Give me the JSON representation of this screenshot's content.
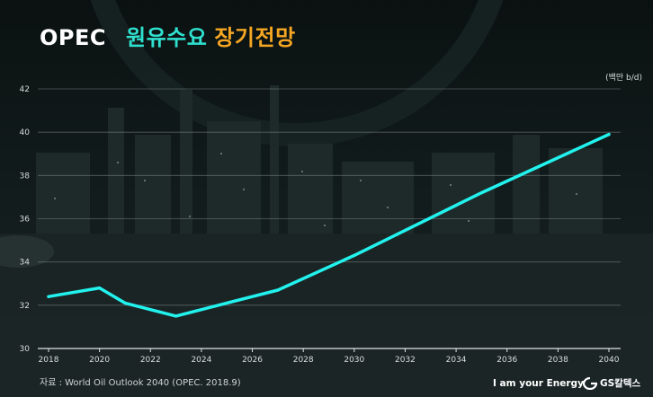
{
  "header": {
    "title_prefix": "OPEC",
    "title_main": "원유수요",
    "title_suffix": "장기전망"
  },
  "footer": {
    "source": "자료 : World Oil Outlook 2040 (OPEC. 2018.9)",
    "slogan": "I am your Energy",
    "brand": "GS칼텍스"
  },
  "colors": {
    "line": "#22f2ee",
    "title_accent": "#2fe0cf",
    "title_orange": "#f5a623"
  },
  "chart_data": {
    "type": "line",
    "title": "OPEC 원유수요 장기전망",
    "unit_label": "(백만 b/d)",
    "xlabel": "",
    "ylabel": "",
    "xlim": [
      2018,
      2040
    ],
    "ylim": [
      30,
      42
    ],
    "yticks": [
      30,
      32,
      34,
      36,
      38,
      40,
      42
    ],
    "xticks": [
      2018,
      2020,
      2022,
      2024,
      2026,
      2028,
      2030,
      2032,
      2034,
      2036,
      2038,
      2040
    ],
    "grid": true,
    "series": [
      {
        "x": [
          2018,
          2020,
          2021,
          2023,
          2025,
          2027,
          2030,
          2035,
          2040
        ],
        "values": [
          32.4,
          32.8,
          32.1,
          31.5,
          32.1,
          32.7,
          34.3,
          37.2,
          39.9
        ]
      }
    ]
  }
}
